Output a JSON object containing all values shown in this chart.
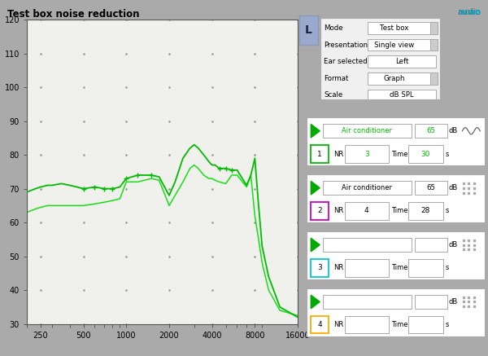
{
  "title": "Test box noise reduction",
  "xlim": [
    200,
    16000
  ],
  "ylim": [
    30,
    120
  ],
  "yticks": [
    30,
    40,
    50,
    60,
    70,
    80,
    90,
    100,
    110,
    120
  ],
  "xticks": [
    250,
    500,
    1000,
    2000,
    4000,
    8000,
    16000
  ],
  "xticklabels": [
    "250",
    "500",
    "1000",
    "2000",
    "4000",
    "8000",
    "16000"
  ],
  "bg_color": "#aaaaaa",
  "plot_bg": "#f0f0ec",
  "line1_color": "#00bb00",
  "line2_color": "#00dd00",
  "audioscan_gray": "#555555",
  "audioscan_cyan": "#00aacc",
  "box1_border": "#00bb00",
  "box2_border": "#cc00cc",
  "box3_border": "#00cccc",
  "box4_border": "#ffaa00",
  "green_label": "#00bb00",
  "green_nr": "#00bb00",
  "panel_white": "#f8f8f8"
}
